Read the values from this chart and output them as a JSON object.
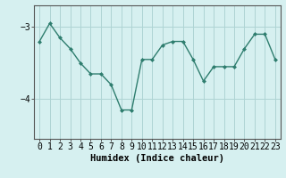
{
  "x": [
    0,
    1,
    2,
    3,
    4,
    5,
    6,
    7,
    8,
    9,
    10,
    11,
    12,
    13,
    14,
    15,
    16,
    17,
    18,
    19,
    20,
    21,
    22,
    23
  ],
  "y": [
    -3.2,
    -2.95,
    -3.15,
    -3.3,
    -3.5,
    -3.65,
    -3.65,
    -3.8,
    -4.15,
    -4.15,
    -3.45,
    -3.45,
    -3.25,
    -3.2,
    -3.2,
    -3.45,
    -3.75,
    -3.55,
    -3.55,
    -3.55,
    -3.3,
    -3.1,
    -3.1,
    -3.45
  ],
  "line_color": "#2e7d6e",
  "marker": "D",
  "marker_size": 2.0,
  "bg_color": "#d6f0f0",
  "grid_color": "#aed4d4",
  "xlabel": "Humidex (Indice chaleur)",
  "yticks": [
    -4,
    -3
  ],
  "ylim": [
    -4.55,
    -2.7
  ],
  "xlim": [
    -0.5,
    23.5
  ],
  "xlabel_fontsize": 7.5,
  "tick_fontsize": 7.0,
  "line_width": 1.0
}
